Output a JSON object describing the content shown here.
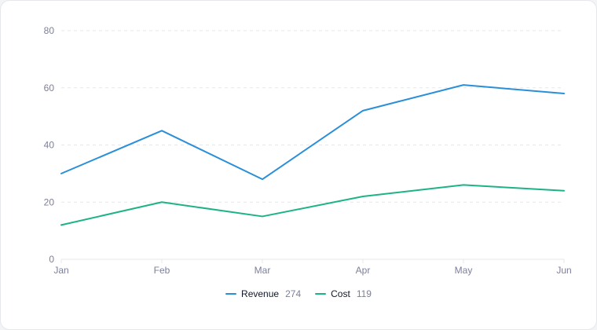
{
  "chart_data": {
    "type": "line",
    "categories": [
      "Jan",
      "Feb",
      "Mar",
      "Apr",
      "May",
      "Jun"
    ],
    "ylim": [
      0,
      80
    ],
    "yticks": [
      0,
      20,
      40,
      60,
      80
    ],
    "grid": true,
    "legend_position": "bottom-center",
    "series": [
      {
        "name": "Revenue",
        "total": "274",
        "color": "#2b8fd8",
        "values": [
          30,
          45,
          28,
          52,
          61,
          58
        ]
      },
      {
        "name": "Cost",
        "total": "119",
        "color": "#1db386",
        "values": [
          12,
          20,
          15,
          22,
          26,
          24
        ]
      }
    ],
    "title": "",
    "xlabel": "",
    "ylabel": ""
  }
}
